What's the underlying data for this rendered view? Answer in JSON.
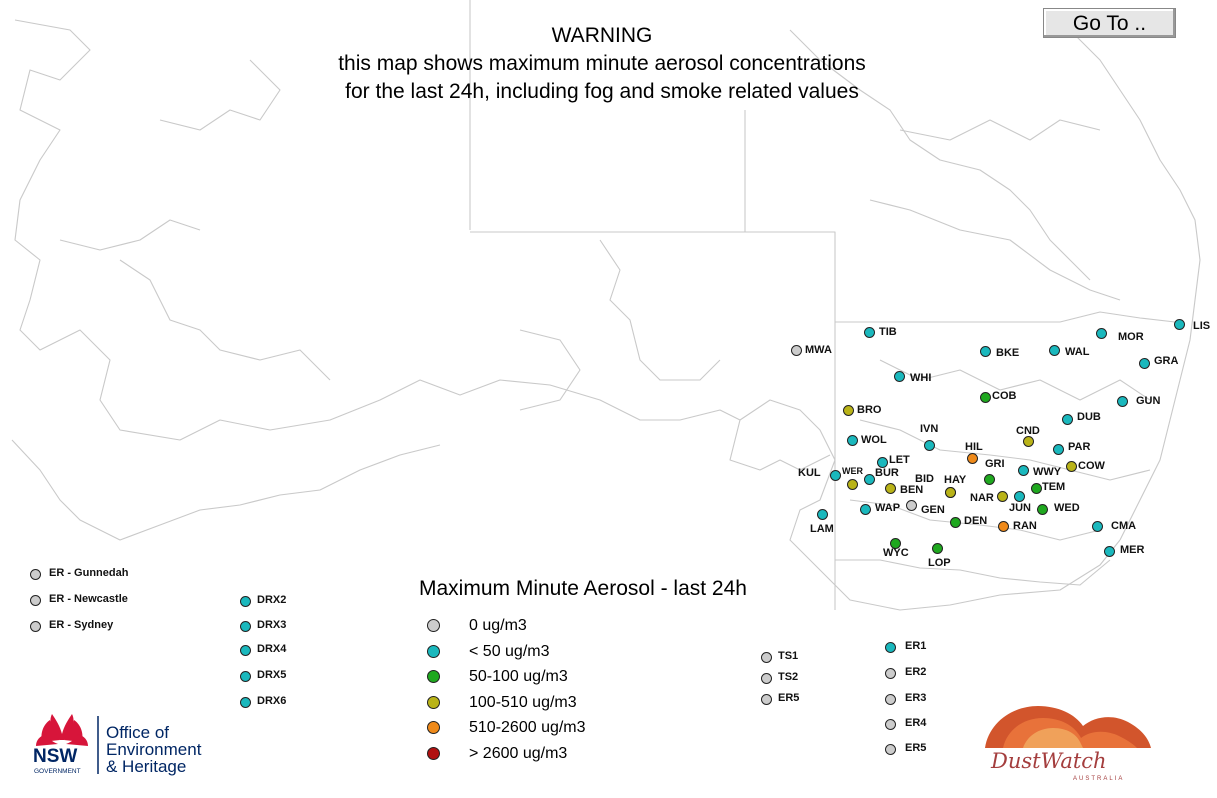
{
  "warning": {
    "line1": "WARNING",
    "line2": "this map shows maximum minute aerosol concentrations",
    "line3": "for the last 24h, including fog and smoke related values"
  },
  "goto_button": {
    "label": "Go To .."
  },
  "colors": {
    "grey": "#cccccc",
    "cyan": "#1ab8bd",
    "green": "#1fa81f",
    "yellow": "#b9b318",
    "orange": "#ef8a1a",
    "red": "#b01010",
    "map_lines": "#c8c8c8"
  },
  "stations": [
    {
      "code": "MWA",
      "level": "grey"
    },
    {
      "code": "TIB",
      "level": "cyan"
    },
    {
      "code": "BKE",
      "level": "cyan"
    },
    {
      "code": "WAL",
      "level": "cyan"
    },
    {
      "code": "MOR",
      "level": "cyan"
    },
    {
      "code": "LIS",
      "level": "cyan"
    },
    {
      "code": "GRA",
      "level": "cyan"
    },
    {
      "code": "WHI",
      "level": "cyan"
    },
    {
      "code": "COB",
      "level": "green"
    },
    {
      "code": "GUN",
      "level": "cyan"
    },
    {
      "code": "BRO",
      "level": "yellow"
    },
    {
      "code": "DUB",
      "level": "cyan"
    },
    {
      "code": "WOL",
      "level": "cyan"
    },
    {
      "code": "IVN",
      "level": "cyan"
    },
    {
      "code": "CND",
      "level": "yellow"
    },
    {
      "code": "PAR",
      "level": "cyan"
    },
    {
      "code": "HIL",
      "level": "orange"
    },
    {
      "code": "LET",
      "level": "cyan"
    },
    {
      "code": "GRI",
      "level": "green"
    },
    {
      "code": "COW",
      "level": "yellow"
    },
    {
      "code": "WWY",
      "level": "cyan"
    },
    {
      "code": "KUL",
      "level": "cyan"
    },
    {
      "code": "WER",
      "level": "yellow"
    },
    {
      "code": "BUR",
      "level": "cyan"
    },
    {
      "code": "BID",
      "level": "yellow"
    },
    {
      "code": "HAY",
      "level": "yellow"
    },
    {
      "code": "TEM",
      "level": "green"
    },
    {
      "code": "BEN",
      "level": "yellow"
    },
    {
      "code": "NAR",
      "level": "yellow"
    },
    {
      "code": "JUN",
      "level": "cyan"
    },
    {
      "code": "WED",
      "level": "green"
    },
    {
      "code": "WAP",
      "level": "cyan"
    },
    {
      "code": "GEN",
      "level": "grey"
    },
    {
      "code": "LAM",
      "level": "cyan"
    },
    {
      "code": "DEN",
      "level": "green"
    },
    {
      "code": "RAN",
      "level": "orange"
    },
    {
      "code": "CMA",
      "level": "cyan"
    },
    {
      "code": "WYC",
      "level": "green"
    },
    {
      "code": "LOP",
      "level": "green"
    },
    {
      "code": "MER",
      "level": "cyan"
    }
  ],
  "extra_stations": [
    {
      "code": "ER - Gunnedah",
      "level": "grey"
    },
    {
      "code": "ER - Newcastle",
      "level": "grey"
    },
    {
      "code": "ER - Sydney",
      "level": "grey"
    },
    {
      "code": "DRX2",
      "level": "cyan"
    },
    {
      "code": "DRX3",
      "level": "cyan"
    },
    {
      "code": "DRX4",
      "level": "cyan"
    },
    {
      "code": "DRX5",
      "level": "cyan"
    },
    {
      "code": "DRX6",
      "level": "cyan"
    },
    {
      "code": "TS1",
      "level": "grey"
    },
    {
      "code": "TS2",
      "level": "grey"
    },
    {
      "code": "ER5",
      "level": "grey"
    },
    {
      "code": "ER1",
      "level": "cyan"
    },
    {
      "code": "ER2",
      "level": "grey"
    },
    {
      "code": "ER3",
      "level": "grey"
    },
    {
      "code": "ER4",
      "level": "grey"
    },
    {
      "code": "ER5",
      "level": "grey"
    }
  ],
  "legend": {
    "title": "Maximum Minute Aerosol - last 24h",
    "items": [
      {
        "label": "0 ug/m3",
        "level": "grey"
      },
      {
        "label": "< 50 ug/m3",
        "level": "cyan"
      },
      {
        "label": "50-100 ug/m3",
        "level": "green"
      },
      {
        "label": "100-510 ug/m3",
        "level": "yellow"
      },
      {
        "label": "510-2600 ug/m3",
        "level": "orange"
      },
      {
        "label": "> 2600 ug/m3",
        "level": "red"
      }
    ]
  },
  "nsw_logo": {
    "nsw": "NSW",
    "government": "GOVERNMENT",
    "line1": "Office of",
    "line2": "Environment",
    "line3": "& Heritage"
  },
  "dustwatch_logo": {
    "name": "DustWatch",
    "sub": "AUSTRALIA"
  }
}
